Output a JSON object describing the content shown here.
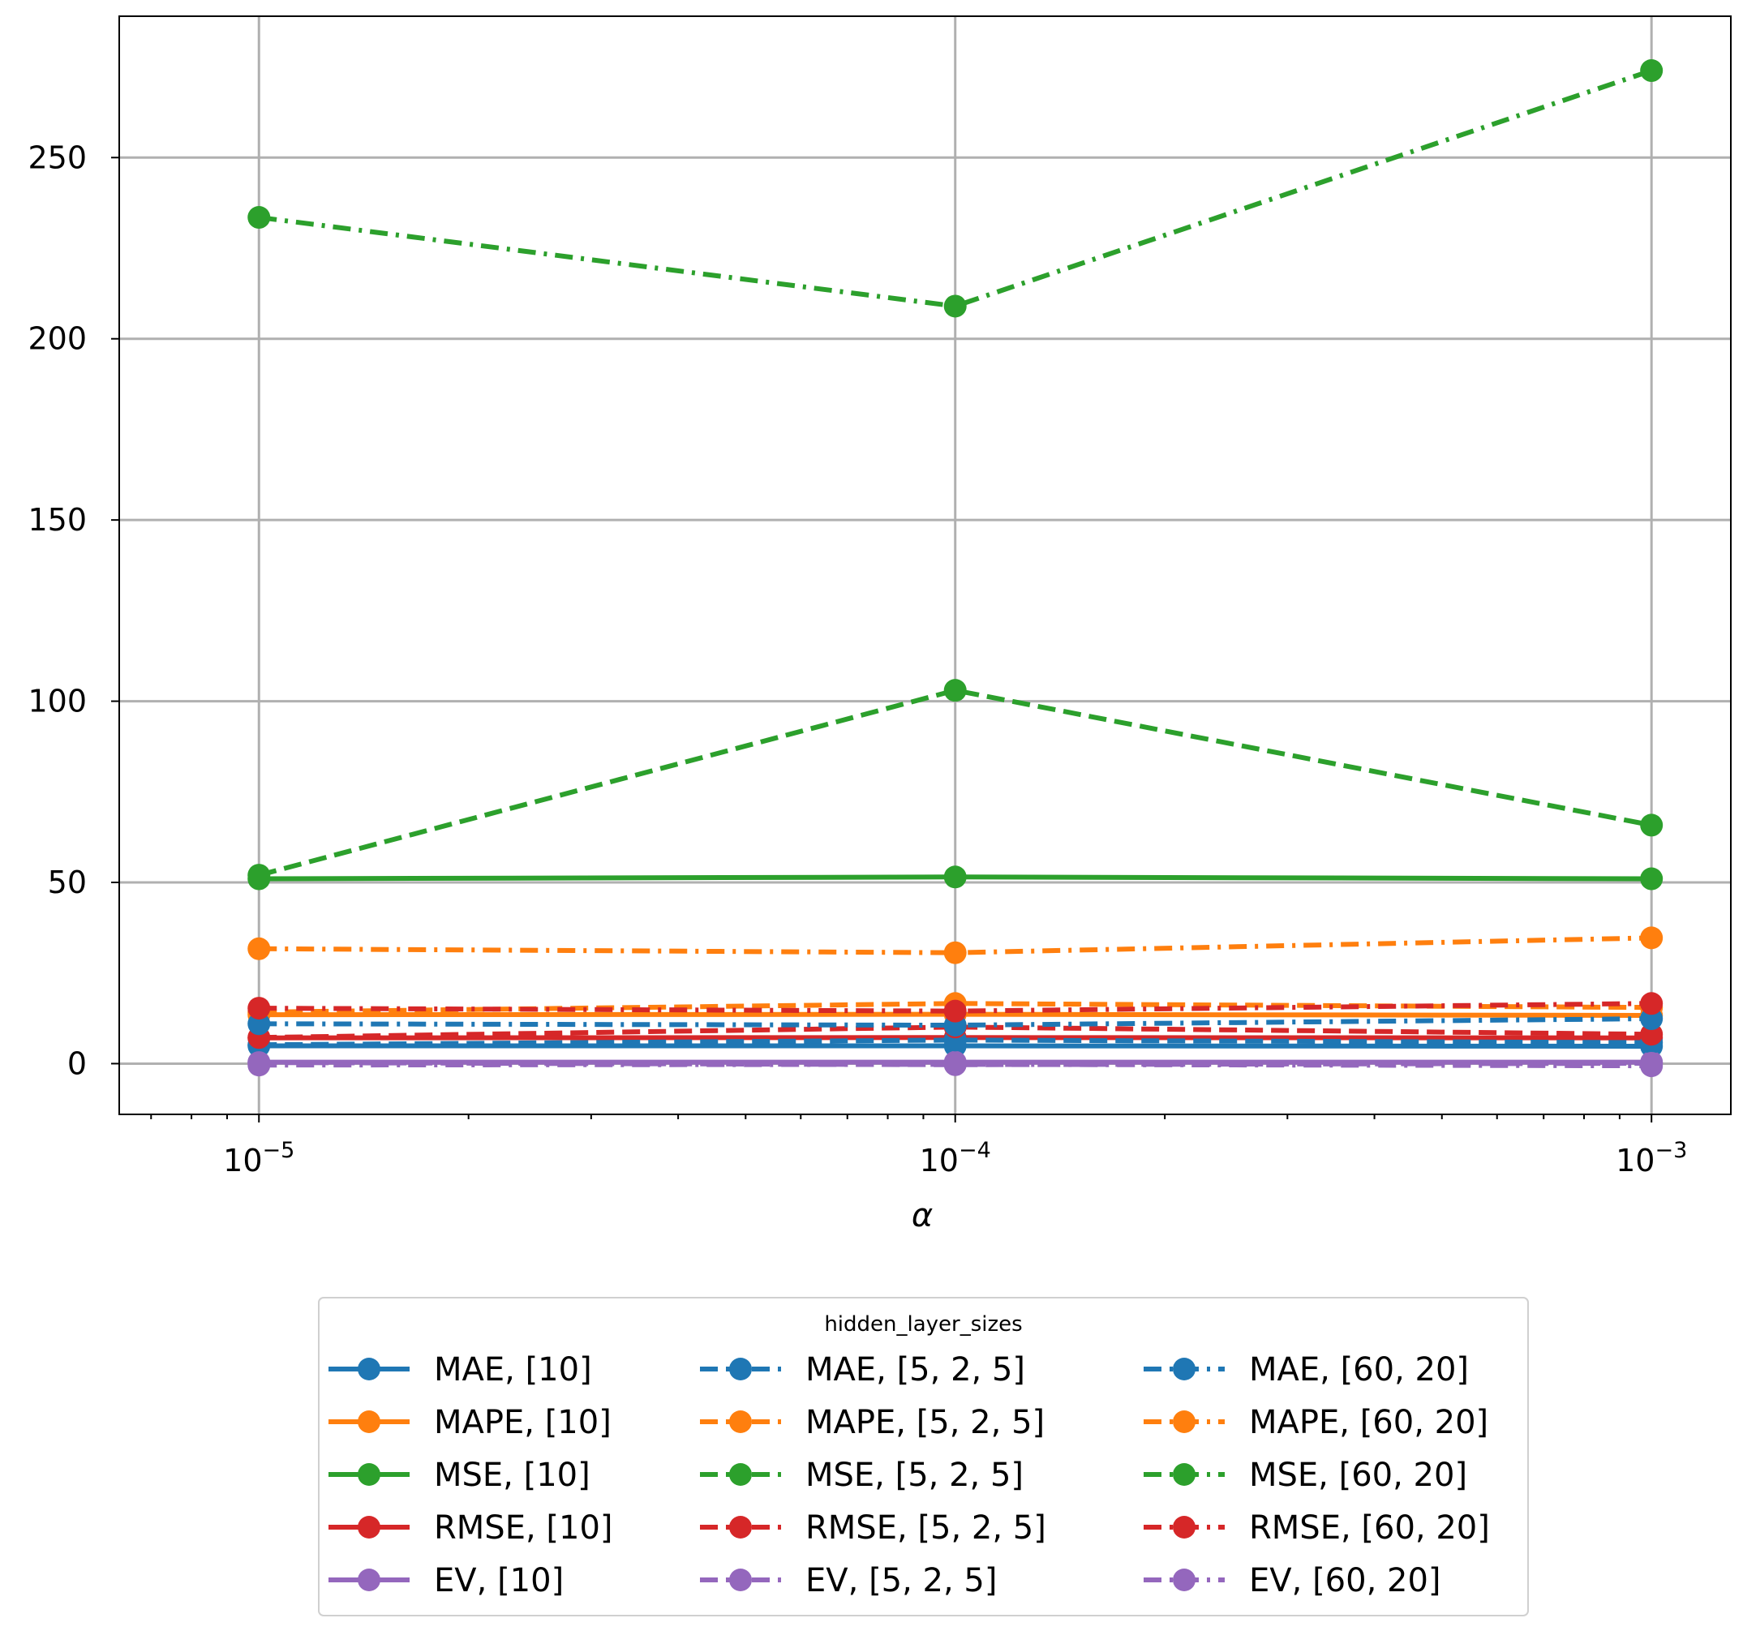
{
  "chart_data": {
    "type": "line",
    "xlabel": "α",
    "ylabel": "",
    "xscale": "log",
    "x": [
      1e-05,
      0.0001,
      0.001
    ],
    "x_tick_labels": [
      {
        "base": "10",
        "exp": "−5"
      },
      {
        "base": "10",
        "exp": "−4"
      },
      {
        "base": "10",
        "exp": "−3"
      }
    ],
    "xlim": [
      6.3e-06,
      0.0013
    ],
    "ylim": [
      -14,
      289
    ],
    "y_ticks": [
      0,
      50,
      100,
      150,
      200,
      250
    ],
    "grid": true,
    "legend": {
      "title": "hidden_layer_sizes",
      "placement": "below plot, 3 columns",
      "columns": 3
    },
    "series": [
      {
        "name": "MAE, [10]",
        "metric": "MAE",
        "values": [
          4.9,
          4.9,
          4.8
        ],
        "color": "#1f77b4",
        "style": "solid"
      },
      {
        "name": "MAPE, [10]",
        "metric": "MAPE",
        "values": [
          13.5,
          13.6,
          13.3
        ],
        "color": "#ff7f0e",
        "style": "solid"
      },
      {
        "name": "MSE, [10]",
        "metric": "MSE",
        "values": [
          51.0,
          51.5,
          51.0
        ],
        "color": "#2ca02c",
        "style": "solid"
      },
      {
        "name": "RMSE, [10]",
        "metric": "RMSE",
        "values": [
          7.1,
          7.2,
          7.1
        ],
        "color": "#d62728",
        "style": "solid"
      },
      {
        "name": "EV, [10]",
        "metric": "EV",
        "values": [
          0.4,
          0.4,
          0.4
        ],
        "color": "#9467bd",
        "style": "solid"
      },
      {
        "name": "MAE, [5, 2, 5]",
        "metric": "MAE",
        "values": [
          5.2,
          6.5,
          5.8
        ],
        "color": "#1f77b4",
        "style": "dashed"
      },
      {
        "name": "MAPE, [5, 2, 5]",
        "metric": "MAPE",
        "values": [
          14.2,
          16.6,
          15.5
        ],
        "color": "#ff7f0e",
        "style": "dashed"
      },
      {
        "name": "MSE, [5, 2, 5]",
        "metric": "MSE",
        "values": [
          52.0,
          103.0,
          65.8
        ],
        "color": "#2ca02c",
        "style": "dashed"
      },
      {
        "name": "RMSE, [5, 2, 5]",
        "metric": "RMSE",
        "values": [
          7.2,
          10.1,
          8.1
        ],
        "color": "#d62728",
        "style": "dashed"
      },
      {
        "name": "EV, [5, 2, 5]",
        "metric": "EV",
        "values": [
          0.3,
          -0.3,
          0.1
        ],
        "color": "#9467bd",
        "style": "dashed"
      },
      {
        "name": "MAE, [60, 20]",
        "metric": "MAE",
        "values": [
          11.0,
          10.6,
          12.4
        ],
        "color": "#1f77b4",
        "style": "dashdot"
      },
      {
        "name": "MAPE, [60, 20]",
        "metric": "MAPE",
        "values": [
          31.7,
          30.6,
          34.7
        ],
        "color": "#ff7f0e",
        "style": "dashdot"
      },
      {
        "name": "MSE, [60, 20]",
        "metric": "MSE",
        "values": [
          233.5,
          209.0,
          274.0
        ],
        "color": "#2ca02c",
        "style": "dashdot"
      },
      {
        "name": "RMSE, [60, 20]",
        "metric": "RMSE",
        "values": [
          15.3,
          14.5,
          16.6
        ],
        "color": "#d62728",
        "style": "dashdot"
      },
      {
        "name": "EV, [60, 20]",
        "metric": "EV",
        "values": [
          -0.4,
          -0.2,
          -0.6
        ],
        "color": "#9467bd",
        "style": "dashdot"
      }
    ]
  }
}
